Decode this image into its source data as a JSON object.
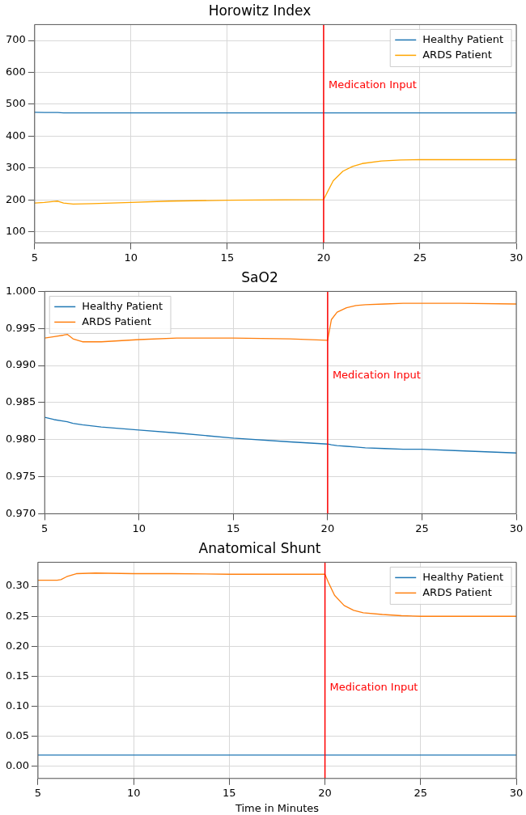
{
  "chart_data": [
    {
      "type": "line",
      "title": "Horowitz Index",
      "x": [
        5,
        5.5,
        6,
        6.2,
        6.5,
        7,
        8,
        10,
        12,
        15,
        18,
        20,
        20.2,
        20.5,
        21,
        21.5,
        22,
        23,
        24,
        25,
        27,
        30
      ],
      "series": [
        {
          "name": "Healthy Patient",
          "color": "#1f77b4",
          "values": [
            475,
            474,
            474,
            474,
            473,
            473,
            473,
            473,
            473,
            473,
            473,
            473,
            473,
            473,
            473,
            473,
            473,
            473,
            473,
            473,
            473,
            473
          ]
        },
        {
          "name": "ARDS Patient",
          "color": "#ffa500",
          "values": [
            190,
            192,
            195,
            196,
            190,
            187,
            188,
            192,
            196,
            199,
            200,
            201,
            225,
            260,
            290,
            305,
            314,
            322,
            325,
            326,
            326,
            326
          ]
        }
      ],
      "xlim": [
        5,
        30
      ],
      "xticks": [
        5,
        10,
        15,
        20,
        25,
        30
      ],
      "ylim": [
        65,
        750
      ],
      "yticks": [
        100,
        200,
        300,
        400,
        500,
        600,
        700
      ],
      "ref_lines": [
        {
          "axis": "x",
          "value": 20,
          "label": "Medication Input",
          "color": "#ff0000"
        }
      ],
      "grid": true,
      "legend": "top right"
    },
    {
      "type": "line",
      "title": "SaO2",
      "x": [
        5,
        5.5,
        6,
        6.2,
        6.5,
        7,
        8,
        10,
        12,
        15,
        18,
        20,
        20.2,
        20.5,
        21,
        21.5,
        22,
        23,
        24,
        25,
        27,
        30
      ],
      "series": [
        {
          "name": "Healthy Patient",
          "color": "#1f77b4",
          "values": [
            0.983,
            0.9827,
            0.9825,
            0.9824,
            0.9822,
            0.982,
            0.9817,
            0.9813,
            0.9809,
            0.9802,
            0.9797,
            0.9794,
            0.9793,
            0.9792,
            0.9791,
            0.979,
            0.9789,
            0.9788,
            0.9787,
            0.9787,
            0.9785,
            0.9782
          ]
        },
        {
          "name": "ARDS Patient",
          "color": "#ff7f0e",
          "values": [
            0.9937,
            0.9939,
            0.9941,
            0.9942,
            0.9936,
            0.9932,
            0.9932,
            0.9935,
            0.9937,
            0.9937,
            0.9936,
            0.9934,
            0.9962,
            0.9972,
            0.9978,
            0.9981,
            0.9982,
            0.9983,
            0.9984,
            0.9984,
            0.9984,
            0.9983
          ]
        }
      ],
      "xlim": [
        5,
        30
      ],
      "xticks": [
        5,
        10,
        15,
        20,
        25,
        30
      ],
      "ylim": [
        0.97,
        1
      ],
      "yticks": [
        {
          "value": 0.97,
          "label": "0.970"
        },
        {
          "value": 0.975,
          "label": "0.975"
        },
        {
          "value": 0.98,
          "label": "0.980"
        },
        {
          "value": 0.985,
          "label": "0.985"
        },
        {
          "value": 0.99,
          "label": "0.990"
        },
        {
          "value": 0.995,
          "label": "0.995"
        },
        {
          "value": 1,
          "label": "1.000"
        }
      ],
      "ref_lines": [
        {
          "axis": "x",
          "value": 20,
          "label": "Medication Input",
          "color": "#ff0000"
        }
      ],
      "grid": true,
      "legend": "top left"
    },
    {
      "type": "line",
      "title": "Anatomical Shunt",
      "xlabel": "Time in Minutes",
      "x": [
        5,
        5.5,
        6,
        6.2,
        6.5,
        7,
        8,
        10,
        12,
        15,
        18,
        20,
        20.2,
        20.5,
        21,
        21.5,
        22,
        23,
        24,
        25,
        27,
        30
      ],
      "series": [
        {
          "name": "Healthy Patient",
          "color": "#1f77b4",
          "values": [
            0.019,
            0.019,
            0.019,
            0.019,
            0.019,
            0.019,
            0.019,
            0.019,
            0.019,
            0.019,
            0.019,
            0.019,
            0.019,
            0.019,
            0.019,
            0.019,
            0.019,
            0.019,
            0.019,
            0.019,
            0.019,
            0.019
          ]
        },
        {
          "name": "ARDS Patient",
          "color": "#ff7f0e",
          "values": [
            0.31,
            0.31,
            0.31,
            0.311,
            0.316,
            0.321,
            0.322,
            0.321,
            0.321,
            0.32,
            0.32,
            0.32,
            0.305,
            0.285,
            0.268,
            0.26,
            0.256,
            0.253,
            0.251,
            0.25,
            0.25,
            0.25
          ]
        }
      ],
      "xlim": [
        5,
        30
      ],
      "xticks": [
        5,
        10,
        15,
        20,
        25,
        30
      ],
      "ylim": [
        -0.02,
        0.34
      ],
      "yticks": [
        {
          "value": 0,
          "label": "0.00"
        },
        {
          "value": 0.05,
          "label": "0.05"
        },
        {
          "value": 0.1,
          "label": "0.10"
        },
        {
          "value": 0.15,
          "label": "0.15"
        },
        {
          "value": 0.2,
          "label": "0.20"
        },
        {
          "value": 0.25,
          "label": "0.25"
        },
        {
          "value": 0.3,
          "label": "0.30"
        }
      ],
      "ref_lines": [
        {
          "axis": "x",
          "value": 20,
          "label": "Medication Input",
          "color": "#ff0000"
        }
      ],
      "grid": true,
      "legend": "top right"
    }
  ]
}
